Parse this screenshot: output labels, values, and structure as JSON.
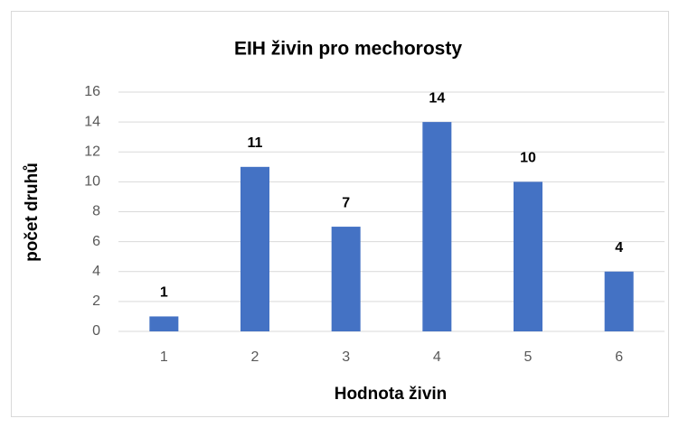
{
  "chart_data": {
    "type": "bar",
    "title": "EIH živin pro mechorosty",
    "x_label": "Hodnota živin",
    "y_label": "počet druhů",
    "categories": [
      "1",
      "2",
      "3",
      "4",
      "5",
      "6"
    ],
    "values": [
      1,
      11,
      7,
      14,
      10,
      4
    ],
    "color": "#4472c4",
    "ylim": [
      0,
      16
    ],
    "yticks": [
      0,
      2,
      4,
      6,
      8,
      10,
      12,
      14,
      16
    ],
    "grid": true
  }
}
